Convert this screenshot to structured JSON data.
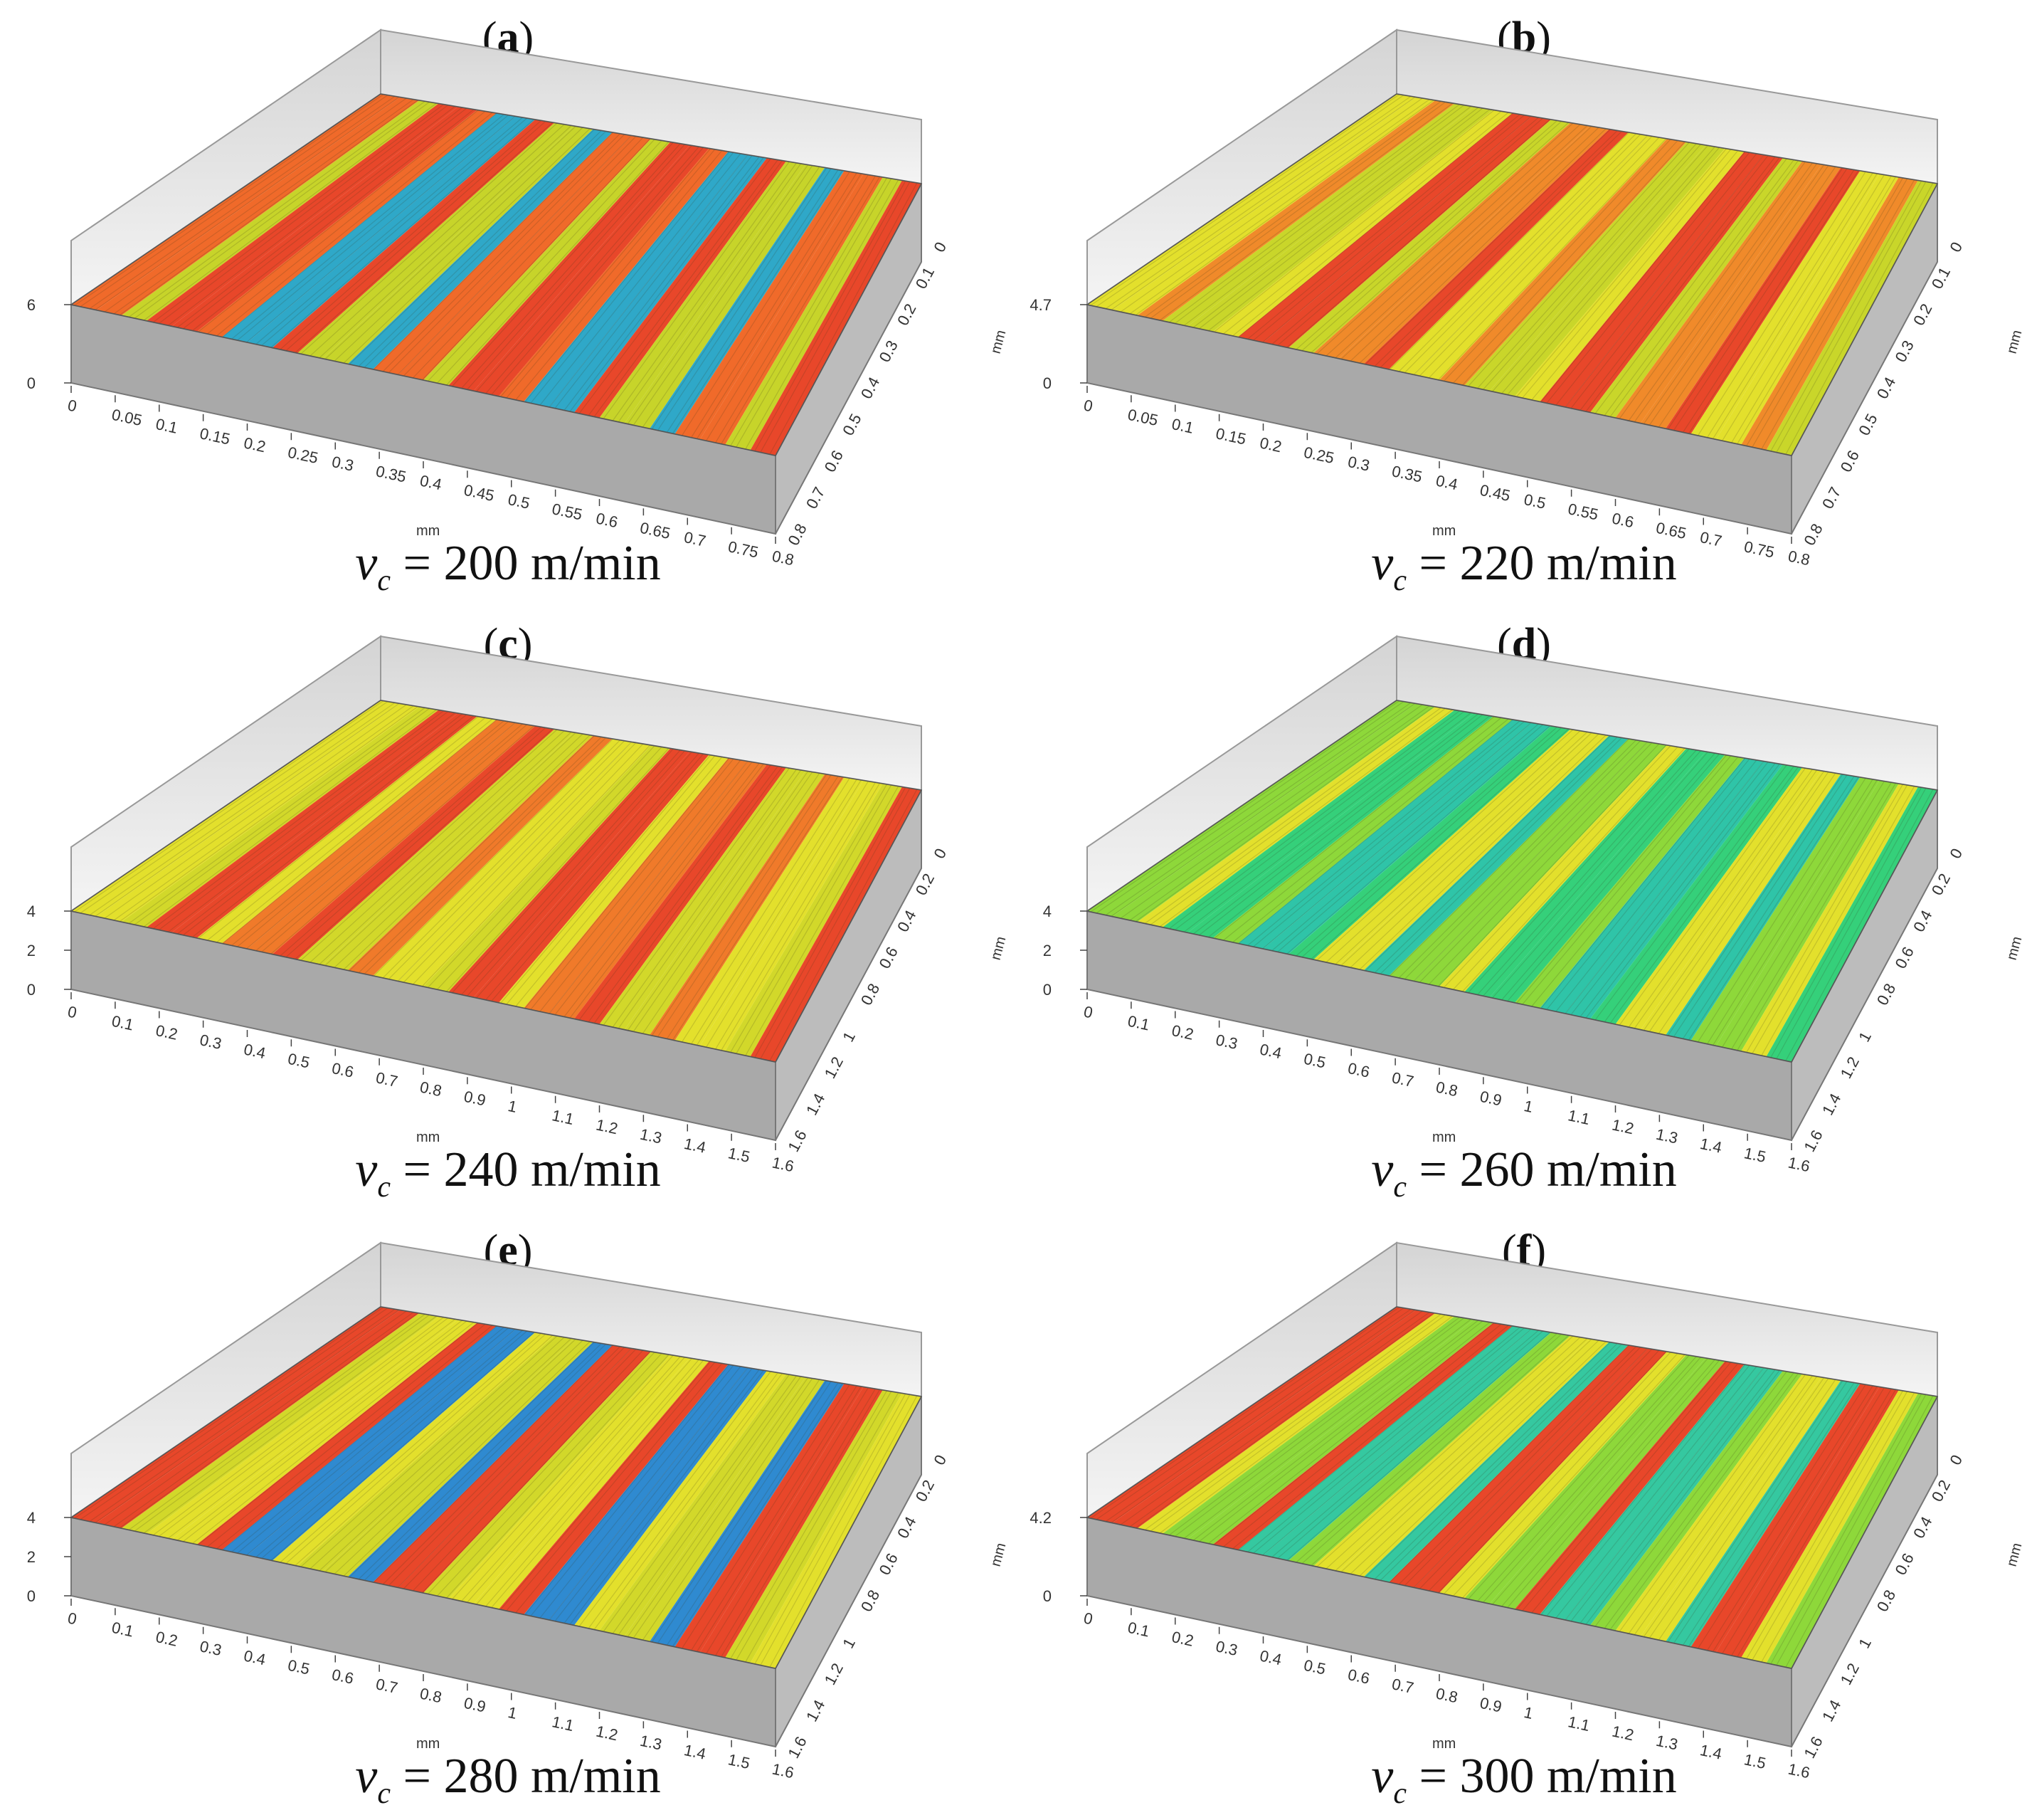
{
  "figure": {
    "panels": [
      {
        "id": "a",
        "label": "a",
        "caption_var": "v",
        "caption_sub": "c",
        "caption_rest": " = 200 m/min",
        "x_unit": "mm",
        "y_unit": "mm",
        "x_ticks": [
          "0",
          "0.05",
          "0.1",
          "0.15",
          "0.2",
          "0.25",
          "0.3",
          "0.35",
          "0.4",
          "0.45",
          "0.5",
          "0.55",
          "0.6",
          "0.65",
          "0.7",
          "0.75",
          "0.8"
        ],
        "y_ticks": [
          "0",
          "0.1",
          "0.2",
          "0.3",
          "0.4",
          "0.5",
          "0.6",
          "0.7",
          "0.8"
        ],
        "z_ticks": [
          "0",
          "6"
        ],
        "palette": [
          "#e8472a",
          "#f06a2a",
          "#c7d42a",
          "#2fa8c8"
        ]
      },
      {
        "id": "b",
        "label": "b",
        "caption_var": "v",
        "caption_sub": "c",
        "caption_rest": " = 220 m/min",
        "x_unit": "mm",
        "y_unit": "mm",
        "x_ticks": [
          "0",
          "0.05",
          "0.1",
          "0.15",
          "0.2",
          "0.25",
          "0.3",
          "0.35",
          "0.4",
          "0.45",
          "0.5",
          "0.55",
          "0.6",
          "0.65",
          "0.7",
          "0.75",
          "0.8"
        ],
        "y_ticks": [
          "0",
          "0.1",
          "0.2",
          "0.3",
          "0.4",
          "0.5",
          "0.6",
          "0.7",
          "0.8"
        ],
        "z_ticks": [
          "0",
          "4.7"
        ],
        "palette": [
          "#c9d62a",
          "#e3e02c",
          "#f08a2a",
          "#e8472a"
        ]
      },
      {
        "id": "c",
        "label": "c",
        "caption_var": "v",
        "caption_sub": "c",
        "caption_rest": " = 240 m/min",
        "x_unit": "mm",
        "y_unit": "mm",
        "x_ticks": [
          "0",
          "0.1",
          "0.2",
          "0.3",
          "0.4",
          "0.5",
          "0.6",
          "0.7",
          "0.8",
          "0.9",
          "1",
          "1.1",
          "1.2",
          "1.3",
          "1.4",
          "1.5",
          "1.6"
        ],
        "y_ticks": [
          "0",
          "0.2",
          "0.4",
          "0.6",
          "0.8",
          "1",
          "1.2",
          "1.4",
          "1.6"
        ],
        "z_ticks": [
          "0",
          "2",
          "4"
        ],
        "palette": [
          "#e8472a",
          "#e3e02c",
          "#d2d82a",
          "#f07a2a"
        ]
      },
      {
        "id": "d",
        "label": "d",
        "caption_var": "v",
        "caption_sub": "c",
        "caption_rest": " = 260 m/min",
        "x_unit": "mm",
        "y_unit": "mm",
        "x_ticks": [
          "0",
          "0.1",
          "0.2",
          "0.3",
          "0.4",
          "0.5",
          "0.6",
          "0.7",
          "0.8",
          "0.9",
          "1",
          "1.1",
          "1.2",
          "1.3",
          "1.4",
          "1.5",
          "1.6"
        ],
        "y_ticks": [
          "0",
          "0.2",
          "0.4",
          "0.6",
          "0.8",
          "1",
          "1.2",
          "1.4",
          "1.6"
        ],
        "z_ticks": [
          "0",
          "2",
          "4"
        ],
        "palette": [
          "#35d07a",
          "#8ed83a",
          "#e3e02c",
          "#2fc4a8"
        ]
      },
      {
        "id": "e",
        "label": "e",
        "caption_var": "v",
        "caption_sub": "c",
        "caption_rest": " = 280 m/min",
        "x_unit": "mm",
        "y_unit": "mm",
        "x_ticks": [
          "0",
          "0.1",
          "0.2",
          "0.3",
          "0.4",
          "0.5",
          "0.6",
          "0.7",
          "0.8",
          "0.9",
          "1",
          "1.1",
          "1.2",
          "1.3",
          "1.4",
          "1.5",
          "1.6"
        ],
        "y_ticks": [
          "0",
          "0.2",
          "0.4",
          "0.6",
          "0.8",
          "1",
          "1.2",
          "1.4",
          "1.6"
        ],
        "z_ticks": [
          "0",
          "2",
          "4"
        ],
        "palette": [
          "#e3e02c",
          "#e8472a",
          "#d2d82a",
          "#2f8ad0"
        ]
      },
      {
        "id": "f",
        "label": "f",
        "caption_var": "v",
        "caption_sub": "c",
        "caption_rest": " = 300 m/min",
        "x_unit": "mm",
        "y_unit": "mm",
        "x_ticks": [
          "0",
          "0.1",
          "0.2",
          "0.3",
          "0.4",
          "0.5",
          "0.6",
          "0.7",
          "0.8",
          "0.9",
          "1",
          "1.1",
          "1.2",
          "1.3",
          "1.4",
          "1.5",
          "1.6"
        ],
        "y_ticks": [
          "0",
          "0.2",
          "0.4",
          "0.6",
          "0.8",
          "1",
          "1.2",
          "1.4",
          "1.6"
        ],
        "z_ticks": [
          "0",
          "4.2"
        ],
        "palette": [
          "#8ed83a",
          "#e8472a",
          "#e3e02c",
          "#35c8a0"
        ]
      }
    ]
  }
}
